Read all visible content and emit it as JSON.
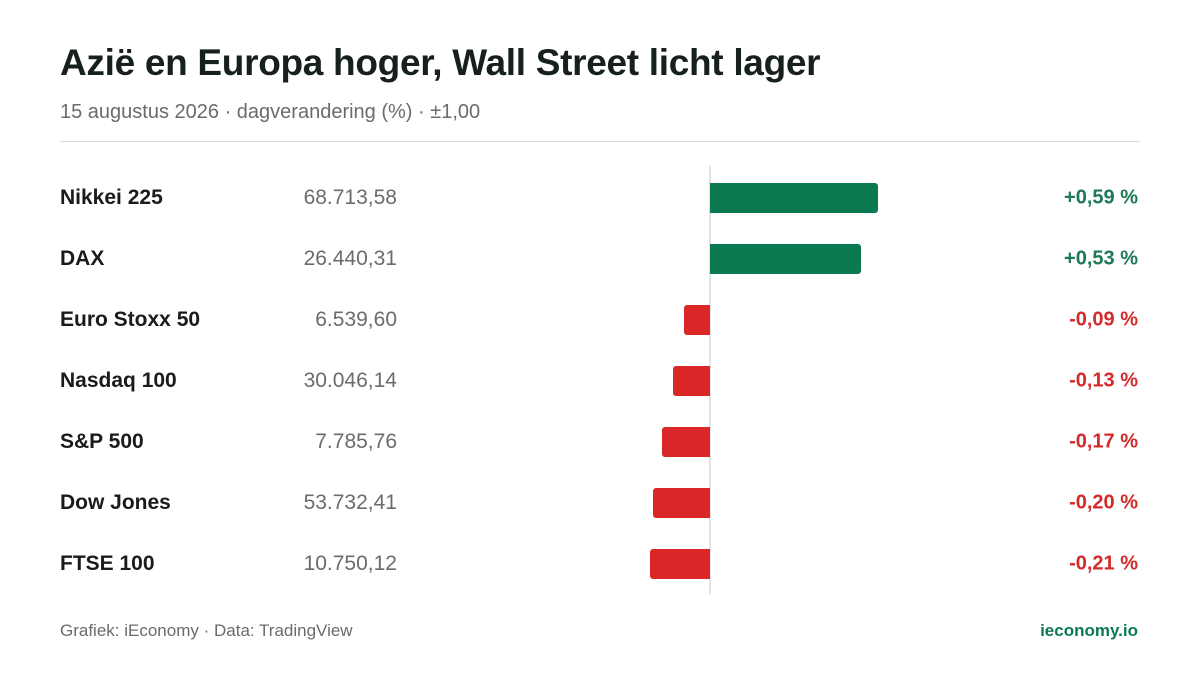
{
  "header": {
    "title": "Azië en Europa hoger, Wall Street licht lager",
    "subtitle": "15 augustus 2026 · dagverandering (%) · ±1,00"
  },
  "footer": {
    "credit": "Grafiek: iEconomy · Data: TradingView",
    "brand": "ieconomy.io"
  },
  "colors": {
    "positive": "#0b7a50",
    "negative": "#d92626",
    "positive_text": "#1c7a55",
    "negative_text": "#d42a2a"
  },
  "chart_data": {
    "type": "bar",
    "orientation": "horizontal",
    "title": "Azië en Europa hoger, Wall Street licht lager",
    "subtitle": "15 augustus 2026 · dagverandering (%) · ±1,00",
    "xlim": [
      -1.0,
      1.0
    ],
    "grid": false,
    "categories": [
      "Nikkei 225",
      "DAX",
      "Euro Stoxx 50",
      "Nasdaq 100",
      "S&P 500",
      "Dow Jones",
      "FTSE 100"
    ],
    "levels": [
      "68.713,58",
      "26.440,31",
      "6.539,60",
      "30.046,14",
      "7.785,76",
      "53.732,41",
      "10.750,12"
    ],
    "values": [
      0.59,
      0.53,
      -0.09,
      -0.13,
      -0.17,
      -0.2,
      -0.21
    ],
    "value_labels": [
      "+0,59 %",
      "+0,53 %",
      "-0,09 %",
      "-0,13 %",
      "-0,17 %",
      "-0,20 %",
      "-0,21 %"
    ]
  }
}
